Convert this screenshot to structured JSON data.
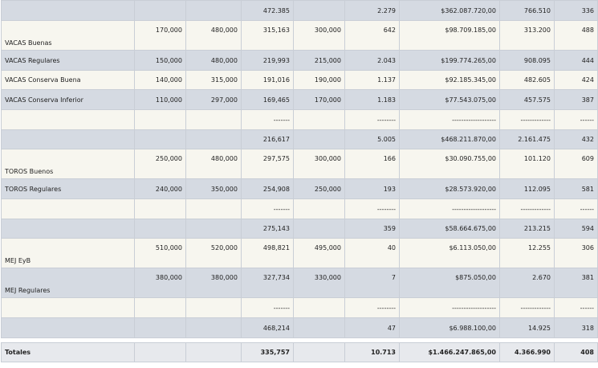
{
  "rows": [
    {
      "label": "",
      "c1": "",
      "c2": "",
      "c3": "472.385",
      "c4": "",
      "c5": "2.279",
      "c6": "$362.087.720,00",
      "c7": "766.510",
      "c8": "336"
    },
    {
      "label": "VACAS Buenas",
      "c1": "170,000",
      "c2": "480,000",
      "c3": "315,163",
      "c4": "300,000",
      "c5": "642",
      "c6": "$98.709.185,00",
      "c7": "313.200",
      "c8": "488"
    },
    {
      "label": "VACAS Regulares",
      "c1": "150,000",
      "c2": "480,000",
      "c3": "219,993",
      "c4": "215,000",
      "c5": "2.043",
      "c6": "$199.774.265,00",
      "c7": "908.095",
      "c8": "444"
    },
    {
      "label": "VACAS Conserva Buena",
      "c1": "140,000",
      "c2": "315,000",
      "c3": "191,016",
      "c4": "190,000",
      "c5": "1.137",
      "c6": "$92.185.345,00",
      "c7": "482.605",
      "c8": "424"
    },
    {
      "label": "VACAS Conserva Inferior",
      "c1": "110,000",
      "c2": "297,000",
      "c3": "169,465",
      "c4": "170,000",
      "c5": "1.183",
      "c6": "$77.543.075,00",
      "c7": "457.575",
      "c8": "387"
    },
    {
      "label": "",
      "c1": "",
      "c2": "",
      "c3": "-------",
      "c4": "",
      "c5": "--------",
      "c6": "-------------------",
      "c7": "-------------",
      "c8": "------"
    },
    {
      "label": "",
      "c1": "",
      "c2": "",
      "c3": "216,617",
      "c4": "",
      "c5": "5.005",
      "c6": "$468.211.870,00",
      "c7": "2.161.475",
      "c8": "432"
    },
    {
      "label": "TOROS Buenos",
      "c1": "250,000",
      "c2": "480,000",
      "c3": "297,575",
      "c4": "300,000",
      "c5": "166",
      "c6": "$30.090.755,00",
      "c7": "101.120",
      "c8": "609"
    },
    {
      "label": "TOROS Regulares",
      "c1": "240,000",
      "c2": "350,000",
      "c3": "254,908",
      "c4": "250,000",
      "c5": "193",
      "c6": "$28.573.920,00",
      "c7": "112.095",
      "c8": "581"
    },
    {
      "label": "",
      "c1": "",
      "c2": "",
      "c3": "-------",
      "c4": "",
      "c5": "--------",
      "c6": "-------------------",
      "c7": "-------------",
      "c8": "------"
    },
    {
      "label": "",
      "c1": "",
      "c2": "",
      "c3": "275,143",
      "c4": "",
      "c5": "359",
      "c6": "$58.664.675,00",
      "c7": "213.215",
      "c8": "594"
    },
    {
      "label": "MEJ EyB",
      "c1": "510,000",
      "c2": "520,000",
      "c3": "498,821",
      "c4": "495,000",
      "c5": "40",
      "c6": "$6.113.050,00",
      "c7": "12.255",
      "c8": "306"
    },
    {
      "label": "MEJ Regulares",
      "c1": "380,000",
      "c2": "380,000",
      "c3": "327,734",
      "c4": "330,000",
      "c5": "7",
      "c6": "$875.050,00",
      "c7": "2.670",
      "c8": "381"
    },
    {
      "label": "",
      "c1": "",
      "c2": "",
      "c3": "-------",
      "c4": "",
      "c5": "--------",
      "c6": "-------------------",
      "c7": "-------------",
      "c8": "------"
    },
    {
      "label": "",
      "c1": "",
      "c2": "",
      "c3": "468,214",
      "c4": "",
      "c5": "47",
      "c6": "$6.988.100,00",
      "c7": "14.925",
      "c8": "318"
    }
  ],
  "totals": {
    "label": "Totales",
    "c1": "",
    "c2": "",
    "c3": "335,757",
    "c4": "",
    "c5": "10.713",
    "c6": "$1.466.247.865,00",
    "c7": "4.366.990",
    "c8": "408"
  }
}
